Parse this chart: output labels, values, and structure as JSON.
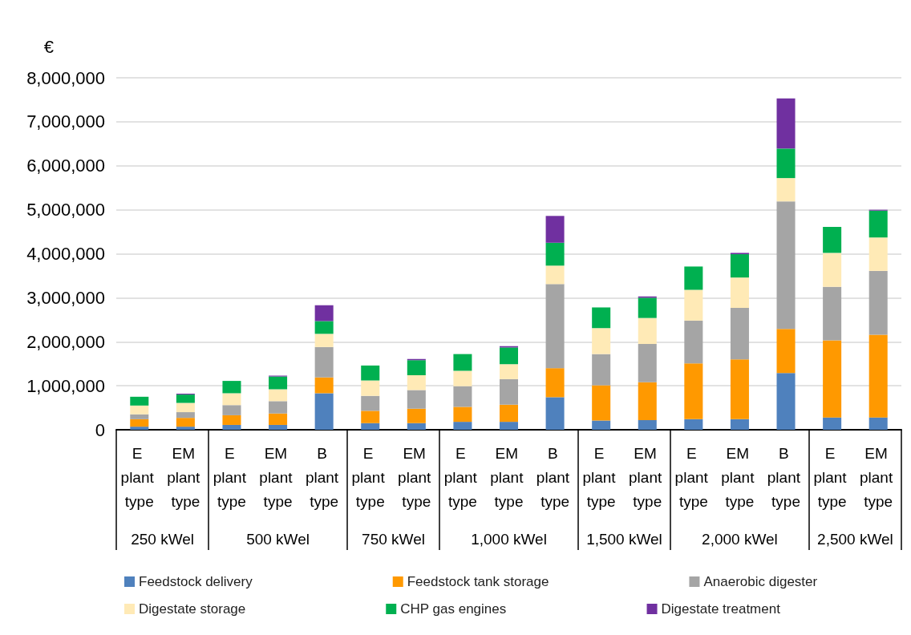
{
  "chart_data": {
    "type": "bar",
    "stacked": true,
    "ylabel": "€",
    "categories": [
      "E plant type",
      "EM plant type",
      "E plant type",
      "EM plant type",
      "B plant type",
      "E plant type",
      "EM plant type",
      "E plant type",
      "EM plant type",
      "B plant type",
      "E plant type",
      "EM plant type",
      "E plant type",
      "EM plant type",
      "B plant type",
      "E plant type",
      "EM plant type"
    ],
    "annotations": [
      "250 kWel",
      "500 kWel",
      "750 kWel",
      "1,000 kWel",
      "1,500 kWel",
      "2,000 kWel",
      "2,500 kWel"
    ],
    "series": [
      {
        "name": "Feedstock delivery",
        "color": "#4f81bd",
        "values": [
          70000,
          70000,
          110000,
          110000,
          830000,
          150000,
          150000,
          180000,
          180000,
          740000,
          210000,
          220000,
          240000,
          240000,
          1290000,
          280000,
          280000
        ]
      },
      {
        "name": "Feedstock tank storage",
        "color": "#ff9900",
        "values": [
          170000,
          200000,
          220000,
          260000,
          360000,
          280000,
          330000,
          340000,
          390000,
          660000,
          800000,
          860000,
          1270000,
          1360000,
          1000000,
          1750000,
          1880000
        ]
      },
      {
        "name": "Anaerobic digester",
        "color": "#a5a5a5",
        "values": [
          110000,
          130000,
          230000,
          280000,
          690000,
          340000,
          420000,
          470000,
          580000,
          1910000,
          710000,
          870000,
          970000,
          1170000,
          2900000,
          1220000,
          1450000
        ]
      },
      {
        "name": "Digestate storage",
        "color": "#ffeab6",
        "values": [
          200000,
          210000,
          270000,
          270000,
          300000,
          350000,
          340000,
          350000,
          340000,
          420000,
          590000,
          590000,
          700000,
          690000,
          530000,
          770000,
          760000
        ]
      },
      {
        "name": "CHP gas engines",
        "color": "#00b050",
        "values": [
          200000,
          190000,
          280000,
          290000,
          290000,
          340000,
          340000,
          380000,
          380000,
          520000,
          470000,
          460000,
          530000,
          530000,
          670000,
          590000,
          610000
        ]
      },
      {
        "name": "Digestate treatment",
        "color": "#7030a0",
        "values": [
          null,
          20000,
          null,
          20000,
          360000,
          null,
          30000,
          null,
          30000,
          610000,
          null,
          30000,
          null,
          30000,
          1140000,
          null,
          20000
        ]
      }
    ],
    "ylim": [
      0,
      8000000
    ],
    "yticks": [
      0,
      {
        "value": 1000000,
        "label": "1,000,000"
      },
      {
        "value": 2000000,
        "label": "2,000,000"
      },
      {
        "value": 3000000,
        "label": "3,000,000"
      },
      {
        "value": 4000000,
        "label": "4,000,000"
      },
      {
        "value": 5000000,
        "label": "5,000,000"
      },
      {
        "value": 6000000,
        "label": "6,000,000"
      },
      {
        "value": 7000000,
        "label": "7,000,000"
      },
      {
        "value": 8000000,
        "label": "8,000,000"
      }
    ],
    "grid": "y",
    "legend": "bottom"
  }
}
